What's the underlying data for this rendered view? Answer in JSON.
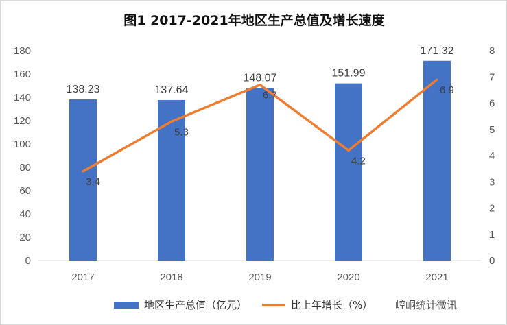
{
  "chart_data": {
    "type": "bar+line",
    "title": "图1  2017-2021年地区生产总值及增长速度",
    "categories": [
      "2017",
      "2018",
      "2019",
      "2020",
      "2021"
    ],
    "series": [
      {
        "name": "地区生产总值（亿元）",
        "type": "bar",
        "axis": "left",
        "color": "#4472c4",
        "values": [
          138.23,
          137.64,
          148.07,
          151.99,
          171.32
        ]
      },
      {
        "name": "比上年增长（%）",
        "type": "line",
        "axis": "right",
        "color": "#ed7d31",
        "values": [
          3.4,
          5.3,
          6.7,
          4.2,
          6.9
        ]
      }
    ],
    "ylim": [
      0,
      180
    ],
    "yticks": [
      0,
      20,
      40,
      60,
      80,
      100,
      120,
      140,
      160,
      180
    ],
    "y2lim": [
      0,
      8
    ],
    "y2ticks": [
      0,
      1,
      2,
      3,
      4,
      5,
      6,
      7,
      8
    ],
    "grid": false,
    "legend": "bottom"
  },
  "watermark": "崆峒统计微讯"
}
